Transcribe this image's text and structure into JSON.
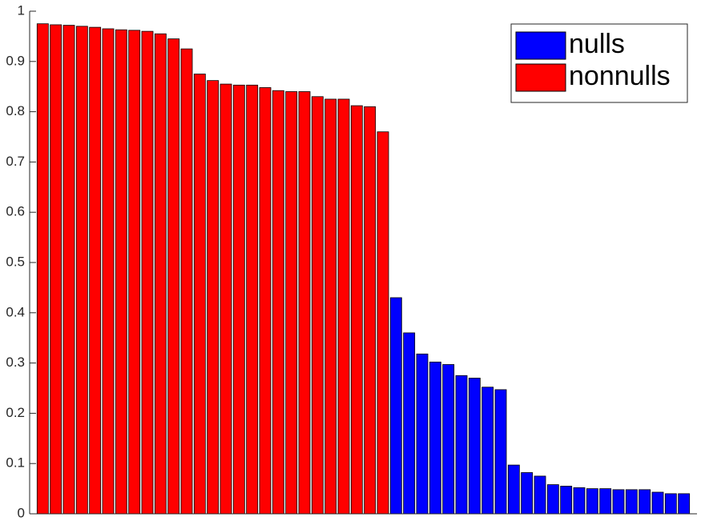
{
  "chart_data": {
    "type": "bar",
    "categories": [
      null,
      null,
      null,
      null,
      null,
      null,
      null,
      null,
      null,
      null,
      null,
      null,
      null,
      null,
      null,
      null,
      null,
      null,
      null,
      null,
      null,
      null,
      null,
      null,
      null,
      null,
      null,
      null,
      null,
      null,
      null,
      null,
      null,
      null,
      null,
      null,
      null,
      null,
      null,
      null,
      null,
      null,
      null,
      null,
      null,
      null,
      null,
      null,
      null,
      null
    ],
    "series": [
      {
        "name": "nulls",
        "color": "#0000ff",
        "values": [
          null,
          null,
          null,
          null,
          null,
          null,
          null,
          null,
          null,
          null,
          null,
          null,
          null,
          null,
          null,
          null,
          null,
          null,
          null,
          null,
          null,
          null,
          null,
          null,
          null,
          null,
          null,
          0.43,
          0.36,
          0.318,
          0.302,
          0.297,
          0.275,
          0.27,
          0.252,
          0.247,
          0.097,
          0.082,
          0.075,
          0.058,
          0.055,
          0.052,
          0.05,
          0.05,
          0.048,
          0.048,
          0.048,
          0.043,
          0.04,
          0.04
        ]
      },
      {
        "name": "nonnulls",
        "color": "#ff0000",
        "values": [
          0.975,
          0.973,
          0.972,
          0.97,
          0.968,
          0.965,
          0.963,
          0.962,
          0.96,
          0.955,
          0.945,
          0.925,
          0.875,
          0.862,
          0.855,
          0.853,
          0.853,
          0.848,
          0.842,
          0.84,
          0.84,
          0.83,
          0.825,
          0.825,
          0.812,
          0.81,
          0.76,
          null,
          null,
          null,
          null,
          null,
          null,
          null,
          null,
          null,
          null,
          null,
          null,
          null,
          null,
          null,
          null,
          null,
          null,
          null,
          null,
          null,
          null,
          null
        ]
      }
    ],
    "ylim": [
      0,
      1
    ],
    "yticks": [
      0,
      0.1,
      0.2,
      0.3,
      0.4,
      0.5,
      0.6,
      0.7,
      0.8,
      0.9,
      1
    ],
    "grid": false,
    "legend": "northeast"
  }
}
